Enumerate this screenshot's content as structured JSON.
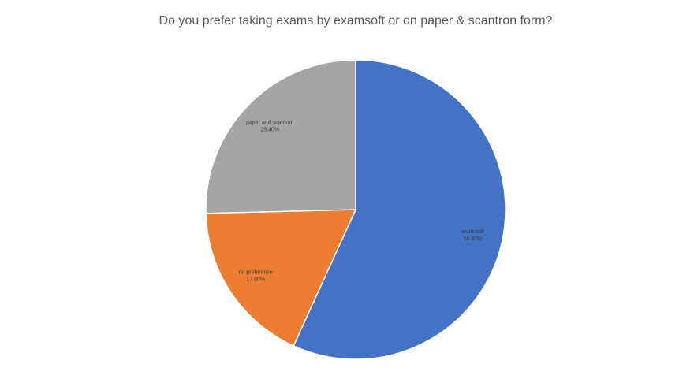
{
  "chart_data": {
    "type": "pie",
    "title": "Do you prefer taking exams by examsoft or on paper & scantron form?",
    "categories": [
      "examsoft",
      "no preference",
      "paper and scantron"
    ],
    "values": [
      56.8,
      17.8,
      25.4
    ],
    "value_labels": [
      "56.80%",
      "17.80%",
      "25.40%"
    ],
    "colors": [
      "#4472c4",
      "#ed7d31",
      "#a5a5a5"
    ]
  }
}
